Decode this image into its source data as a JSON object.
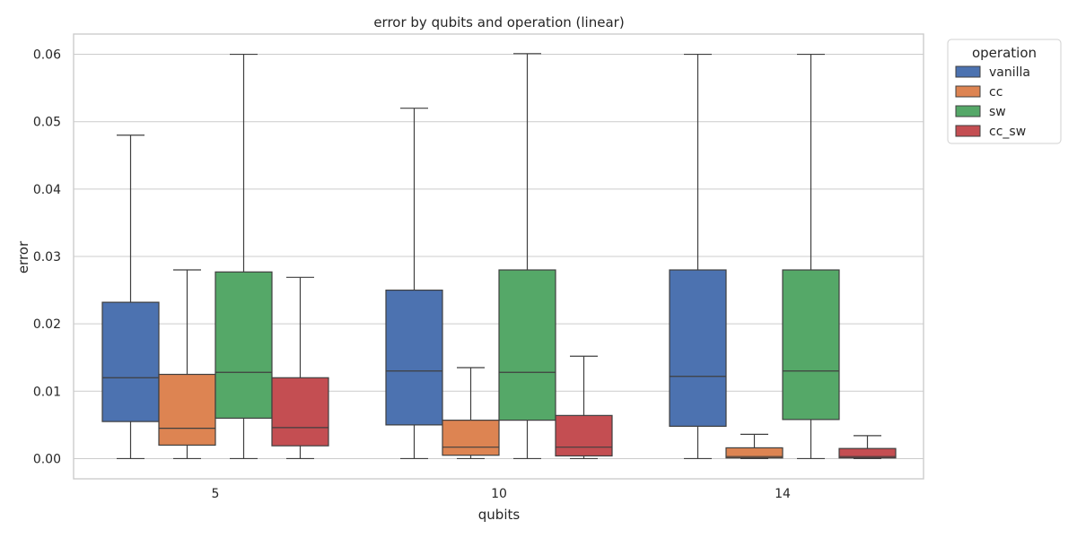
{
  "chart_data": {
    "type": "boxplot",
    "title": "error by qubits and operation (linear)",
    "xlabel": "qubits",
    "ylabel": "error",
    "categories": [
      "5",
      "10",
      "14"
    ],
    "ylim": [
      -0.003,
      0.063
    ],
    "yticks": [
      0.0,
      0.01,
      0.02,
      0.03,
      0.04,
      0.05,
      0.06
    ],
    "ytick_labels": [
      "0.00",
      "0.01",
      "0.02",
      "0.03",
      "0.04",
      "0.05",
      "0.06"
    ],
    "grid": "horizontal",
    "legend": {
      "title": "operation",
      "placement": "outside top-right"
    },
    "series": [
      {
        "name": "vanilla",
        "color": "#4c72b0",
        "boxes": [
          {
            "whisker_low": 0.0,
            "q1": 0.0055,
            "median": 0.012,
            "q3": 0.0232,
            "whisker_high": 0.048
          },
          {
            "whisker_low": 0.0,
            "q1": 0.005,
            "median": 0.013,
            "q3": 0.025,
            "whisker_high": 0.052
          },
          {
            "whisker_low": 0.0,
            "q1": 0.0048,
            "median": 0.0122,
            "q3": 0.028,
            "whisker_high": 0.06
          }
        ]
      },
      {
        "name": "cc",
        "color": "#dd8452",
        "boxes": [
          {
            "whisker_low": 0.0,
            "q1": 0.002,
            "median": 0.0045,
            "q3": 0.0125,
            "whisker_high": 0.028
          },
          {
            "whisker_low": 0.0,
            "q1": 0.0005,
            "median": 0.0017,
            "q3": 0.0057,
            "whisker_high": 0.0135
          },
          {
            "whisker_low": 0.0,
            "q1": 0.0001,
            "median": 0.0003,
            "q3": 0.0016,
            "whisker_high": 0.0036
          }
        ]
      },
      {
        "name": "sw",
        "color": "#55a868",
        "boxes": [
          {
            "whisker_low": 0.0,
            "q1": 0.006,
            "median": 0.0128,
            "q3": 0.0277,
            "whisker_high": 0.06
          },
          {
            "whisker_low": 0.0,
            "q1": 0.0057,
            "median": 0.0128,
            "q3": 0.028,
            "whisker_high": 0.0601
          },
          {
            "whisker_low": 0.0,
            "q1": 0.0058,
            "median": 0.013,
            "q3": 0.028,
            "whisker_high": 0.06
          }
        ]
      },
      {
        "name": "cc_sw",
        "color": "#c44e52",
        "boxes": [
          {
            "whisker_low": 0.0,
            "q1": 0.0019,
            "median": 0.0046,
            "q3": 0.012,
            "whisker_high": 0.0269
          },
          {
            "whisker_low": 0.0,
            "q1": 0.0004,
            "median": 0.0017,
            "q3": 0.0064,
            "whisker_high": 0.0152
          },
          {
            "whisker_low": 0.0,
            "q1": 0.0001,
            "median": 0.0003,
            "q3": 0.0015,
            "whisker_high": 0.0034
          }
        ]
      }
    ]
  }
}
